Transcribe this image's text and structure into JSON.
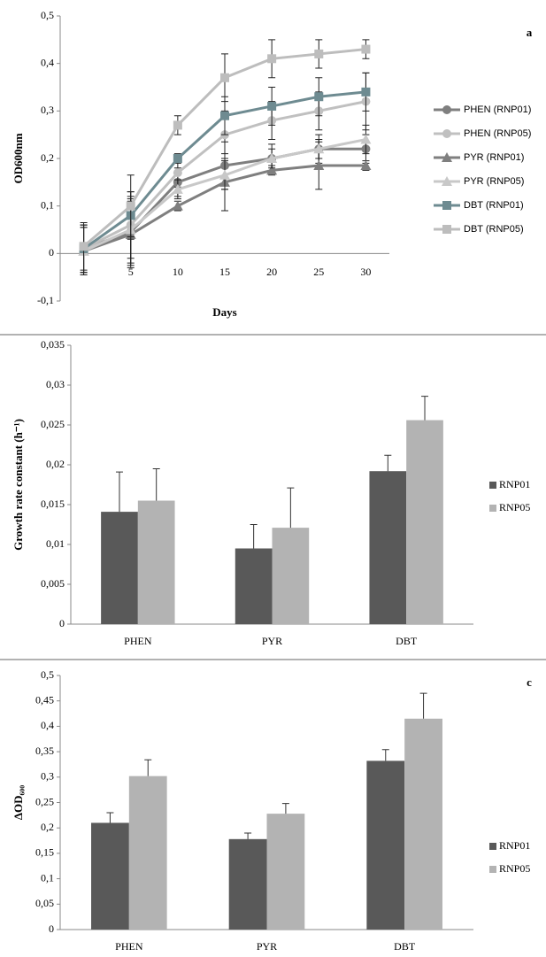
{
  "chart_data": [
    {
      "type": "line",
      "annotation": "a",
      "ylabel": "OD600nm",
      "xlabel": "Days",
      "categories": [
        null,
        "5",
        "10",
        "15",
        "20",
        "25",
        "30"
      ],
      "ylim": [
        -0.1,
        0.5
      ],
      "yticks": [
        {
          "value": -0.1,
          "label": "-0,1"
        },
        0,
        {
          "value": 0.1,
          "label": "0,1"
        },
        {
          "value": 0.2,
          "label": "0,2"
        },
        {
          "value": 0.3,
          "label": "0,3"
        },
        {
          "value": 0.4,
          "label": "0,4"
        },
        {
          "value": 0.5,
          "label": "0,5"
        }
      ],
      "grid": false,
      "series": [
        {
          "name": "PHEN (RNP01)",
          "color": "#7f7f7f",
          "marker": "circle",
          "values": [
            0.01,
            0.045,
            0.15,
            0.185,
            0.2,
            0.22,
            0.22
          ],
          "errors": [
            0.05,
            0.07,
            0.03,
            0.05,
            0.03,
            0.03,
            0.03
          ]
        },
        {
          "name": "PHEN (RNP05)",
          "color": "#c0c0c0",
          "marker": "circle",
          "values": [
            0.01,
            0.06,
            0.17,
            0.25,
            0.28,
            0.3,
            0.32
          ],
          "errors": [
            0.05,
            0.07,
            0.03,
            0.05,
            0.04,
            0.04,
            0.06
          ]
        },
        {
          "name": "PYR (RNP01)",
          "color": "#7f7f7f",
          "marker": "triangle",
          "values": [
            0.005,
            0.04,
            0.1,
            0.15,
            0.175,
            0.185,
            0.185
          ],
          "errors": [
            0.05,
            0.07,
            0.01,
            0.06,
            0.01,
            0.05,
            0.01
          ]
        },
        {
          "name": "PYR (RNP05)",
          "color": "#c8c8c8",
          "marker": "triangle",
          "values": [
            0.005,
            0.05,
            0.135,
            0.165,
            0.2,
            0.22,
            0.24
          ],
          "errors": [
            0.05,
            0.07,
            0.02,
            0.03,
            0.02,
            0.02,
            0.03
          ]
        },
        {
          "name": "DBT (RNP01)",
          "color": "#6e8b91",
          "marker": "square",
          "values": [
            0.01,
            0.08,
            0.2,
            0.29,
            0.31,
            0.33,
            0.34
          ],
          "errors": [
            0.05,
            0.05,
            0.01,
            0.04,
            0.04,
            0.04,
            0.04
          ]
        },
        {
          "name": "DBT (RNP05)",
          "color": "#bdbdbd",
          "marker": "square",
          "values": [
            0.015,
            0.1,
            0.27,
            0.37,
            0.41,
            0.42,
            0.43
          ],
          "errors": [
            0.05,
            0.065,
            0.02,
            0.05,
            0.04,
            0.03,
            0.02
          ]
        }
      ]
    },
    {
      "type": "bar",
      "ylabel": "Growth rate constant (h⁻¹)",
      "categories": [
        "PHEN",
        "PYR",
        "DBT"
      ],
      "ylim": [
        0,
        0.035
      ],
      "yticks": [
        0,
        {
          "value": 0.005,
          "label": "0,005"
        },
        {
          "value": 0.01,
          "label": "0,01"
        },
        {
          "value": 0.015,
          "label": "0,015"
        },
        {
          "value": 0.02,
          "label": "0,02"
        },
        {
          "value": 0.025,
          "label": "0,025"
        },
        {
          "value": 0.03,
          "label": "0,03"
        },
        {
          "value": 0.035,
          "label": "0,035"
        }
      ],
      "grid": false,
      "series": [
        {
          "name": "RNP01",
          "color": "#595959",
          "values": [
            0.0141,
            0.0095,
            0.0192
          ],
          "errors": [
            0.005,
            0.003,
            0.002
          ]
        },
        {
          "name": "RNP05",
          "color": "#b3b3b3",
          "values": [
            0.0155,
            0.0121,
            0.0256
          ],
          "errors": [
            0.004,
            0.005,
            0.003
          ]
        }
      ]
    },
    {
      "type": "bar",
      "annotation": "c",
      "ylabel": "ΔOD₆₀₀",
      "categories": [
        "PHEN",
        "PYR",
        "DBT"
      ],
      "ylim": [
        0,
        0.5
      ],
      "yticks": [
        0,
        {
          "value": 0.05,
          "label": "0,05"
        },
        {
          "value": 0.1,
          "label": "0,1"
        },
        {
          "value": 0.15,
          "label": "0,15"
        },
        {
          "value": 0.2,
          "label": "0,2"
        },
        {
          "value": 0.25,
          "label": "0,25"
        },
        {
          "value": 0.3,
          "label": "0,3"
        },
        {
          "value": 0.35,
          "label": "0,35"
        },
        {
          "value": 0.4,
          "label": "0,4"
        },
        {
          "value": 0.45,
          "label": "0,45"
        },
        {
          "value": 0.5,
          "label": "0,5"
        }
      ],
      "grid": false,
      "series": [
        {
          "name": "RNP01",
          "color": "#595959",
          "values": [
            0.21,
            0.178,
            0.332
          ],
          "errors": [
            0.02,
            0.012,
            0.022
          ]
        },
        {
          "name": "RNP05",
          "color": "#b3b3b3",
          "values": [
            0.302,
            0.228,
            0.415
          ],
          "errors": [
            0.032,
            0.02,
            0.05
          ]
        }
      ]
    }
  ]
}
